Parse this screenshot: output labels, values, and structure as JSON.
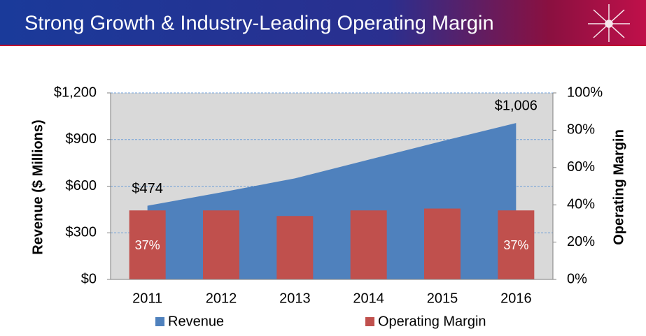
{
  "chart_data": {
    "type": "area-bar",
    "title": "Strong Growth & Industry-Leading Operating Margin",
    "categories": [
      "2011",
      "2012",
      "2013",
      "2014",
      "2015",
      "2016"
    ],
    "series": [
      {
        "name": "Revenue",
        "type": "area",
        "color": "#4f81bd",
        "axis": "y",
        "values": [
          474,
          560,
          650,
          770,
          890,
          1006
        ],
        "value_labels": [
          "$474",
          null,
          null,
          null,
          null,
          "$1,006"
        ]
      },
      {
        "name": "Operating Margin",
        "type": "bar",
        "color": "#c0504d",
        "axis": "y2",
        "values": [
          37,
          37,
          34,
          37,
          38,
          37
        ],
        "value_labels": [
          "37%",
          null,
          null,
          null,
          null,
          "37%"
        ]
      }
    ],
    "ylabel": "Revenue ($ Millions)",
    "y2label": "Operating Margin",
    "ylim": [
      0,
      1200
    ],
    "yticks": [
      {
        "value": 0,
        "label": "$0"
      },
      {
        "value": 300,
        "label": "$300"
      },
      {
        "value": 600,
        "label": "$600"
      },
      {
        "value": 900,
        "label": "$900"
      },
      {
        "value": 1200,
        "label": "$1,200"
      }
    ],
    "y2lim": [
      0,
      100
    ],
    "y2ticks": [
      {
        "value": 0,
        "label": "0%"
      },
      {
        "value": 20,
        "label": "20%"
      },
      {
        "value": 40,
        "label": "40%"
      },
      {
        "value": 60,
        "label": "60%"
      },
      {
        "value": 80,
        "label": "80%"
      },
      {
        "value": 100,
        "label": "100%"
      }
    ],
    "grid": true,
    "legend": "bottom"
  }
}
